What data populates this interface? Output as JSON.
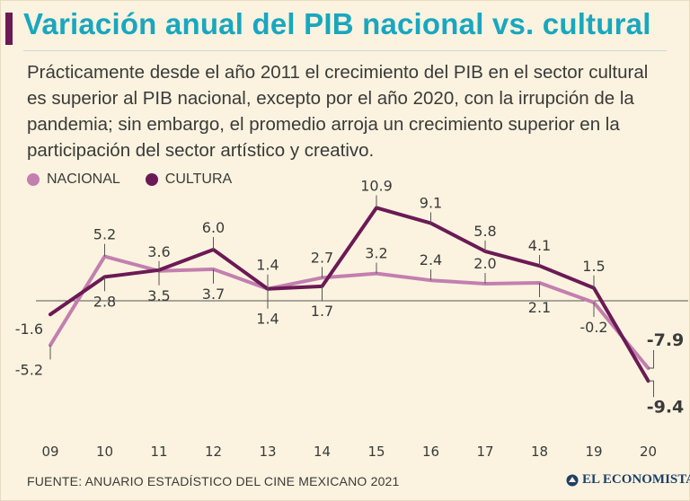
{
  "header": {
    "title": "Variación anual del PIB nacional vs. cultural",
    "subtitle": "Prácticamente desde el año 2011 el crecimiento del PIB en el sector cultural es superior al PIB nacional, excepto por el año 2020, con la irrupción de la pandemia; sin embargo, el promedio arroja un crecimiento superior en la participación del sector artístico y creativo."
  },
  "colors": {
    "title": "#19a7bf",
    "title_bar": "#6b1a55",
    "nacional": "#c37fb0",
    "cultura": "#6b1a55",
    "background": "#fbf3df"
  },
  "legend": {
    "nacional": "NACIONAL",
    "cultura": "CULTURA"
  },
  "chart_data": {
    "type": "line",
    "title": "Variación anual del PIB nacional vs. cultural",
    "categories": [
      "09",
      "10",
      "11",
      "12",
      "13",
      "14",
      "15",
      "16",
      "17",
      "18",
      "19",
      "20"
    ],
    "series": [
      {
        "name": "NACIONAL",
        "values": [
          -5.2,
          5.2,
          3.5,
          3.7,
          1.4,
          2.7,
          3.2,
          2.4,
          2.0,
          2.1,
          -0.2,
          -7.9
        ]
      },
      {
        "name": "CULTURA",
        "values": [
          -1.6,
          2.8,
          3.6,
          6.0,
          1.4,
          1.7,
          10.9,
          9.1,
          5.8,
          4.1,
          1.5,
          -9.4
        ]
      }
    ],
    "labels": {
      "NACIONAL": [
        "-5.2",
        "5.2",
        "3.5",
        "3.7",
        "1.4",
        "2.7",
        "3.2",
        "2.4",
        "2.0",
        "2.1",
        "-0.2",
        "-7.9"
      ],
      "CULTURA": [
        "-1.6",
        "2.8",
        "3.6",
        "6.0",
        "1.4",
        "1.7",
        "10.9",
        "9.1",
        "5.8",
        "4.1",
        "1.5",
        "-9.4"
      ]
    },
    "xlabel": "",
    "ylabel": "",
    "ylim": [
      -10,
      12
    ],
    "grid": false
  },
  "footer": {
    "source": "FUENTE: ANUARIO ESTADÍSTICO DEL CINE MEXICANO 2021",
    "brand": "EL ECONOMISTA"
  }
}
